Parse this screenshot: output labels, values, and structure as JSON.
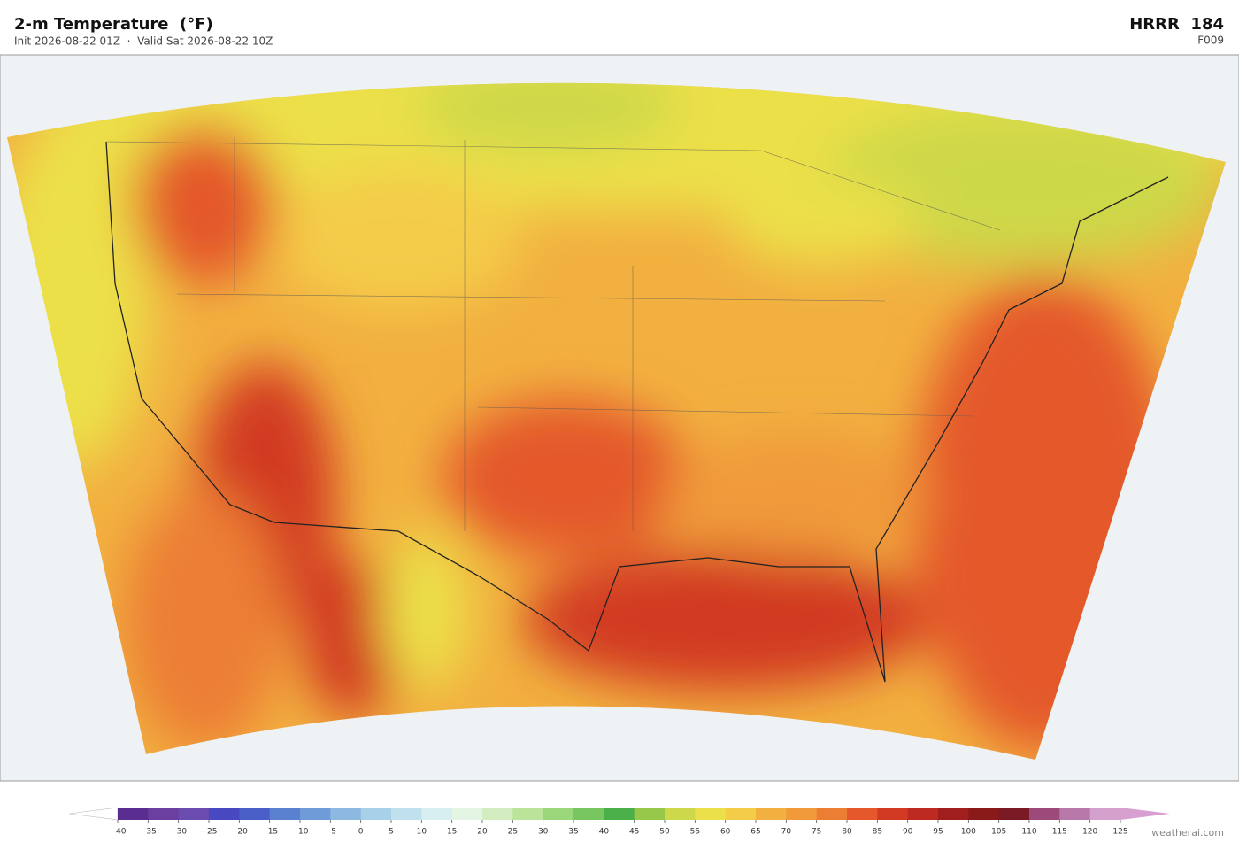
{
  "header": {
    "title": "2-m Temperature  (°F)",
    "subtitle": "Init 2026-08-22 01Z  ·  Valid Sat 2026-08-22 10Z",
    "model": "HRRR  184",
    "forecast": "F009"
  },
  "colorbar": {
    "ticks": [
      {
        "value": -40,
        "label": "−40"
      },
      {
        "value": -35,
        "label": "−35"
      },
      {
        "value": -30,
        "label": "−30"
      },
      {
        "value": -25,
        "label": "−25"
      },
      {
        "value": -20,
        "label": "−20"
      },
      {
        "value": -15,
        "label": "−15"
      },
      {
        "value": -10,
        "label": "−10"
      },
      {
        "value": -5,
        "label": "−5"
      },
      0,
      5,
      10,
      15,
      20,
      25,
      30,
      35,
      40,
      45,
      50,
      55,
      60,
      65,
      70,
      75,
      80,
      85,
      90,
      95,
      100,
      105,
      110,
      115,
      120,
      125
    ],
    "colors": [
      "#5a2d91",
      "#6b3fa0",
      "#6a4cb0",
      "#4848c0",
      "#4a5fc8",
      "#5a80d0",
      "#6f9bd8",
      "#8db8e0",
      "#a8d0e8",
      "#c0e0ee",
      "#d8eff2",
      "#e4f5e4",
      "#d4edc0",
      "#bce39a",
      "#9ad67a",
      "#78c660",
      "#4cb04a",
      "#98c84a",
      "#cdd84a",
      "#ece04a",
      "#f4cc48",
      "#f2b040",
      "#f09a3a",
      "#ec7e34",
      "#e4582c",
      "#d23a24",
      "#bc2a22",
      "#a01e1e",
      "#8a1a1a",
      "#7a1a24",
      "#9c4a7a",
      "#b878aa",
      "#d4a0cc"
    ],
    "under_color": "#ffffff",
    "over_color": "#d8a0d0"
  },
  "footer": {
    "credit": "weatherai.com"
  }
}
